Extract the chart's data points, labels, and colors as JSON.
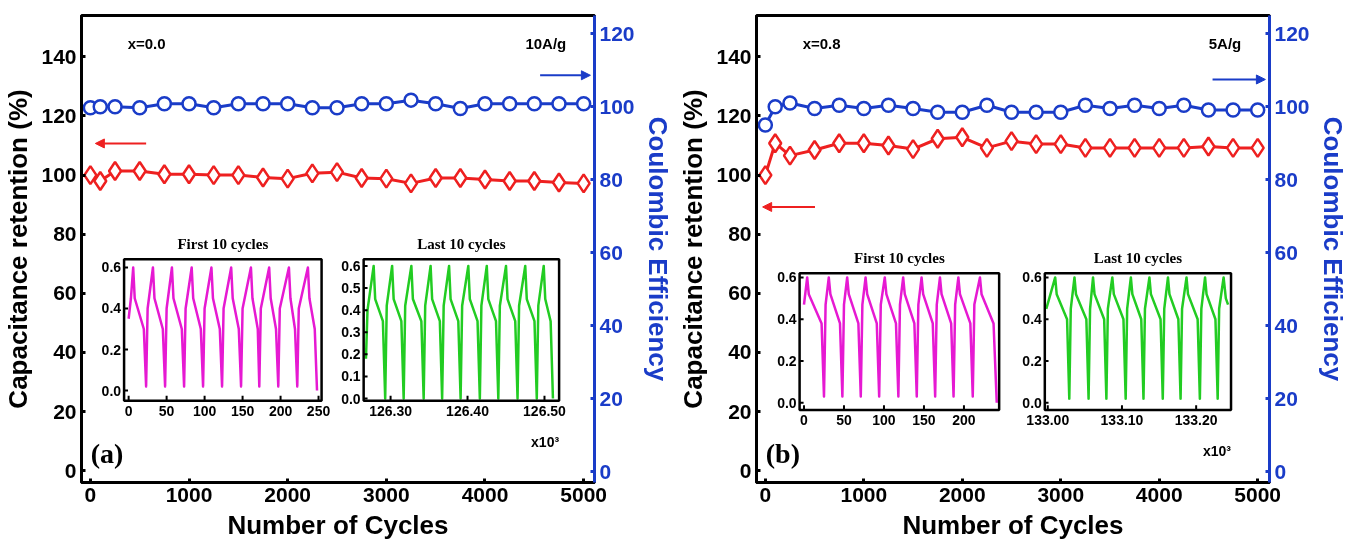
{
  "chart_data": [
    {
      "type": "line",
      "xlabel": "Number of Cycles",
      "ylabel": "Capacitance retention (%)",
      "y2label": "Coulombic Efficiency",
      "xlim": [
        -90,
        5110
      ],
      "ylim": [
        -4,
        154
      ],
      "y2lim": [
        -3,
        125
      ],
      "xticks": [
        0,
        1000,
        2000,
        3000,
        4000,
        5000
      ],
      "yticks": [
        0,
        20,
        40,
        60,
        80,
        100,
        120,
        140
      ],
      "y2ticks": [
        0,
        20,
        40,
        60,
        80,
        100,
        120
      ],
      "annotations": [
        "x=0.0",
        "10A/g",
        "(a)"
      ],
      "series": [
        {
          "color": "#ee2020",
          "marker": "diamond",
          "x": [
            0,
            100,
            250,
            500,
            750,
            1000,
            1250,
            1500,
            1750,
            2000,
            2250,
            2500,
            2750,
            3000,
            3250,
            3500,
            3750,
            4000,
            4250,
            4500,
            4750,
            5000
          ],
          "values": [
            100,
            98,
            101.4,
            101.4,
            100.3,
            100.3,
            100,
            100,
            99.2,
            98.8,
            100.6,
            101,
            99,
            98.8,
            97.2,
            99,
            99,
            98.5,
            98,
            98,
            97.5,
            97.2
          ]
        },
        {
          "color": "#1a3cc8",
          "marker": "circle",
          "axis": "y2",
          "x": [
            0,
            100,
            250,
            500,
            750,
            1000,
            1250,
            1500,
            1750,
            2000,
            2250,
            2500,
            2750,
            3000,
            3250,
            3500,
            3750,
            4000,
            4250,
            4500,
            4750,
            5000
          ],
          "values": [
            99.7,
            100,
            100,
            99.7,
            100.8,
            100.8,
            99.7,
            100.8,
            100.8,
            100.8,
            99.7,
            99.7,
            100.8,
            100.8,
            101.8,
            100.8,
            99.5,
            100.8,
            100.8,
            100.8,
            100.8,
            100.8
          ]
        }
      ]
    },
    {
      "type": "line",
      "title": "First 10 cycles",
      "xlim": [
        -6,
        254
      ],
      "ylim": [
        -0.05,
        0.64
      ],
      "xticks": [
        0,
        50,
        100,
        150,
        200,
        250
      ],
      "yticks": [
        {
          "value": 0,
          "label": "0.0"
        },
        {
          "value": 0.2,
          "label": "0.2"
        },
        {
          "value": 0.4,
          "label": "0.4"
        },
        {
          "value": 0.6,
          "label": "0.6"
        }
      ],
      "series": [
        {
          "color": "#e619d2",
          "x": [
            0,
            3,
            6,
            8,
            20,
            23,
            25,
            32,
            34,
            45,
            48,
            50,
            57,
            59,
            70,
            73,
            75,
            83,
            85,
            95,
            98,
            100,
            109,
            111,
            120,
            123,
            125,
            135,
            137,
            145,
            148,
            150,
            161,
            163,
            170,
            172,
            174,
            185,
            187,
            194,
            197,
            199,
            211,
            213,
            219,
            222,
            224,
            236,
            238,
            245,
            248
          ],
          "values": [
            0.35,
            0.45,
            0.6,
            0.45,
            0.3,
            0.02,
            0.4,
            0.6,
            0.45,
            0.3,
            0.02,
            0.4,
            0.6,
            0.45,
            0.3,
            0.02,
            0.4,
            0.6,
            0.45,
            0.3,
            0.02,
            0.4,
            0.6,
            0.45,
            0.3,
            0.02,
            0.4,
            0.6,
            0.45,
            0.3,
            0.02,
            0.4,
            0.6,
            0.45,
            0.3,
            0.02,
            0.4,
            0.6,
            0.45,
            0.3,
            0.02,
            0.4,
            0.6,
            0.45,
            0.3,
            0.02,
            0.4,
            0.6,
            0.45,
            0.3,
            0.0
          ]
        }
      ]
    },
    {
      "type": "line",
      "title": "Last 10 cycles",
      "xlim": [
        126.265,
        126.519
      ],
      "ylim": [
        -0.01,
        0.63
      ],
      "xticks": [
        {
          "value": 126.3,
          "label": "126.30"
        },
        {
          "value": 126.4,
          "label": "126.40"
        },
        {
          "value": 126.5,
          "label": "126.50"
        }
      ],
      "yticks": [
        {
          "value": 0,
          "label": "0.0"
        },
        {
          "value": 0.1,
          "label": "0.1"
        },
        {
          "value": 0.2,
          "label": "0.2"
        },
        {
          "value": 0.3,
          "label": "0.3"
        },
        {
          "value": 0.4,
          "label": "0.4"
        },
        {
          "value": 0.5,
          "label": "0.5"
        },
        {
          "value": 0.6,
          "label": "0.6"
        }
      ],
      "annotations": [
        "x10³"
      ],
      "series": [
        {
          "color": "#22cc22",
          "x": [
            126.268,
            126.27,
            126.278,
            126.28,
            126.29,
            126.293,
            126.295,
            126.302,
            126.304,
            126.314,
            126.317,
            126.319,
            126.327,
            126.329,
            126.34,
            126.343,
            126.345,
            126.352,
            126.354,
            126.364,
            126.367,
            126.369,
            126.376,
            126.378,
            126.388,
            126.391,
            126.393,
            126.401,
            126.403,
            126.413,
            126.416,
            126.418,
            126.425,
            126.427,
            126.437,
            126.44,
            126.442,
            126.45,
            126.452,
            126.462,
            126.465,
            126.467,
            126.475,
            126.477,
            126.487,
            126.49,
            126.492,
            126.499,
            126.501,
            126.508,
            126.511
          ],
          "values": [
            0.18,
            0.4,
            0.6,
            0.45,
            0.35,
            0.0,
            0.42,
            0.6,
            0.45,
            0.35,
            0.0,
            0.42,
            0.6,
            0.45,
            0.35,
            0.0,
            0.42,
            0.6,
            0.45,
            0.35,
            0.0,
            0.42,
            0.6,
            0.45,
            0.35,
            0.0,
            0.42,
            0.6,
            0.45,
            0.35,
            0.0,
            0.42,
            0.6,
            0.45,
            0.35,
            0.0,
            0.42,
            0.6,
            0.45,
            0.35,
            0.0,
            0.42,
            0.6,
            0.45,
            0.35,
            0.0,
            0.42,
            0.6,
            0.45,
            0.35,
            0.0
          ]
        }
      ]
    },
    {
      "type": "line",
      "xlabel": "Number of Cycles",
      "ylabel": "Capacitance retention (%)",
      "y2label": "Coulombic Efficiency",
      "xlim": [
        -90,
        5120
      ],
      "ylim": [
        -4,
        154
      ],
      "y2lim": [
        -3,
        125
      ],
      "xticks": [
        0,
        1000,
        2000,
        3000,
        4000,
        5000
      ],
      "yticks": [
        0,
        20,
        40,
        60,
        80,
        100,
        120,
        140
      ],
      "y2ticks": [
        0,
        20,
        40,
        60,
        80,
        100,
        120
      ],
      "annotations": [
        "x=0.8",
        "5A/g",
        "(b)"
      ],
      "series": [
        {
          "color": "#ee2020",
          "marker": "diamond",
          "x": [
            0,
            100,
            250,
            500,
            750,
            1000,
            1250,
            1500,
            1750,
            2000,
            2250,
            2500,
            2750,
            3000,
            3250,
            3500,
            3750,
            4000,
            4250,
            4500,
            4750,
            5000
          ],
          "values": [
            100,
            110.8,
            106.6,
            108.5,
            110.8,
            110.8,
            110,
            108.8,
            112.3,
            112.8,
            109.2,
            111.5,
            110.5,
            110.5,
            109.2,
            109.2,
            109.2,
            109.2,
            109.2,
            109.7,
            109.2,
            109.2
          ]
        },
        {
          "color": "#1a3cc8",
          "marker": "circle",
          "axis": "y2",
          "x": [
            0,
            100,
            250,
            500,
            750,
            1000,
            1250,
            1500,
            1750,
            2000,
            2250,
            2500,
            2750,
            3000,
            3250,
            3500,
            3750,
            4000,
            4250,
            4500,
            4750,
            5000
          ],
          "values": [
            95,
            100,
            101,
            99.5,
            100.4,
            99.5,
            100.4,
            99.5,
            98.5,
            98.5,
            100.4,
            98.5,
            98.5,
            98.5,
            100.4,
            99.5,
            100.4,
            99.5,
            100.4,
            99.1,
            99.1,
            99.1
          ]
        }
      ]
    },
    {
      "type": "line",
      "title": "First 10 cycles",
      "xlim": [
        -5.5,
        244
      ],
      "ylim": [
        -0.035,
        0.62
      ],
      "xticks": [
        0,
        50,
        100,
        150,
        200
      ],
      "yticks": [
        {
          "value": 0,
          "label": "0.0"
        },
        {
          "value": 0.2,
          "label": "0.2"
        },
        {
          "value": 0.4,
          "label": "0.4"
        },
        {
          "value": 0.6,
          "label": "0.6"
        }
      ],
      "series": [
        {
          "color": "#e619d2",
          "x": [
            0,
            4,
            6,
            22,
            25,
            27,
            31,
            33,
            45,
            48,
            50,
            54,
            56,
            68,
            71,
            73,
            77,
            79,
            91,
            94,
            96,
            101,
            103,
            115,
            118,
            120,
            124,
            126,
            138,
            141,
            143,
            147,
            149,
            161,
            164,
            166,
            170,
            172,
            184,
            187,
            189,
            193,
            195,
            208,
            211,
            213,
            220,
            222,
            237,
            241
          ],
          "values": [
            0.47,
            0.6,
            0.52,
            0.38,
            0.03,
            0.47,
            0.6,
            0.52,
            0.38,
            0.03,
            0.47,
            0.6,
            0.52,
            0.38,
            0.03,
            0.47,
            0.6,
            0.52,
            0.38,
            0.03,
            0.47,
            0.6,
            0.52,
            0.38,
            0.03,
            0.47,
            0.6,
            0.52,
            0.38,
            0.03,
            0.47,
            0.6,
            0.52,
            0.38,
            0.03,
            0.47,
            0.6,
            0.52,
            0.38,
            0.03,
            0.47,
            0.6,
            0.52,
            0.38,
            0.03,
            0.47,
            0.6,
            0.52,
            0.38,
            0.0
          ]
        }
      ]
    },
    {
      "type": "line",
      "title": "Last 10 cycles",
      "xlim": [
        132.996,
        133.247
      ],
      "ylim": [
        -0.035,
        0.62
      ],
      "xticks": [
        {
          "value": 133.0,
          "label": "133.00"
        },
        {
          "value": 133.1,
          "label": "133.10"
        },
        {
          "value": 133.2,
          "label": "133.20"
        }
      ],
      "yticks": [
        {
          "value": 0,
          "label": "0.0"
        },
        {
          "value": 0.2,
          "label": "0.2"
        },
        {
          "value": 0.4,
          "label": "0.4"
        },
        {
          "value": 0.6,
          "label": "0.6"
        }
      ],
      "annotations": [
        "x10³"
      ],
      "series": [
        {
          "color": "#22cc22",
          "x": [
            132.998,
            133.002,
            133.01,
            133.012,
            133.026,
            133.029,
            133.031,
            133.036,
            133.038,
            133.052,
            133.055,
            133.057,
            133.061,
            133.063,
            133.076,
            133.079,
            133.081,
            133.087,
            133.089,
            133.102,
            133.105,
            133.107,
            133.112,
            133.114,
            133.126,
            133.129,
            133.131,
            133.137,
            133.139,
            133.152,
            133.155,
            133.157,
            133.162,
            133.164,
            133.176,
            133.179,
            133.181,
            133.187,
            133.189,
            133.202,
            133.205,
            133.207,
            133.212,
            133.214,
            133.226,
            133.229,
            133.231,
            133.237,
            133.24,
            133.243
          ],
          "values": [
            0.45,
            0.5,
            0.6,
            0.52,
            0.4,
            0.02,
            0.45,
            0.6,
            0.52,
            0.4,
            0.02,
            0.45,
            0.6,
            0.52,
            0.4,
            0.02,
            0.45,
            0.6,
            0.52,
            0.4,
            0.02,
            0.45,
            0.6,
            0.52,
            0.4,
            0.02,
            0.45,
            0.6,
            0.52,
            0.4,
            0.02,
            0.45,
            0.6,
            0.52,
            0.4,
            0.02,
            0.45,
            0.6,
            0.52,
            0.4,
            0.02,
            0.45,
            0.6,
            0.52,
            0.4,
            0.02,
            0.45,
            0.6,
            0.5,
            0.47
          ]
        }
      ]
    }
  ]
}
